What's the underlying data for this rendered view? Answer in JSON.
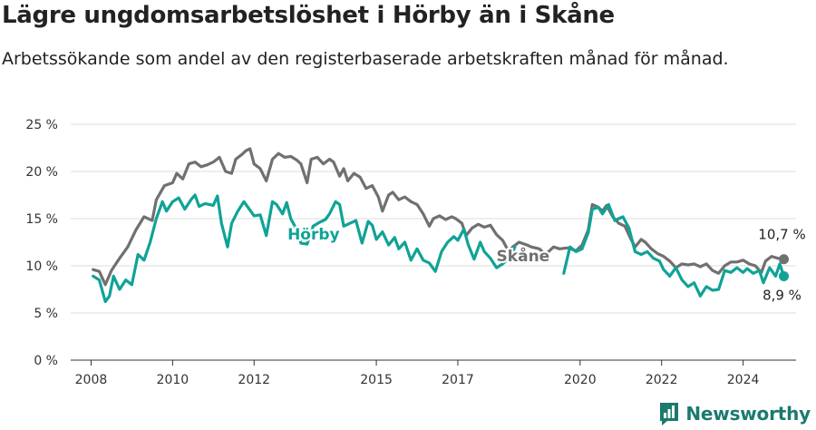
{
  "title": "Lägre ungdomsarbetslöshet i Hörby än i Skåne",
  "subtitle": "Arbetssökande som andel av den registerbaserade arbetskraften månad för månad.",
  "brand": {
    "name": "Newsworthy"
  },
  "colors": {
    "horby": "#0fa396",
    "skane": "#707070",
    "grid": "#dedede",
    "brand": "#1a7a6e"
  },
  "chart_data": {
    "type": "line",
    "y_unit": "%",
    "ylim": [
      0,
      25
    ],
    "y_ticks": [
      0,
      5,
      10,
      15,
      20,
      25
    ],
    "y_tick_labels": [
      "0 %",
      "5 %",
      "10 %",
      "15 %",
      "20 %",
      "25 %"
    ],
    "x_ticks": [
      2008,
      2010,
      2012,
      2015,
      2017,
      2020,
      2022,
      2024
    ],
    "xlim": [
      2007.5,
      2025.3
    ],
    "grid": true,
    "series": [
      {
        "name": "Skåne",
        "key": "skane",
        "end_label": "10,7 %",
        "points": [
          [
            2008.05,
            9.6
          ],
          [
            2008.2,
            9.4
          ],
          [
            2008.35,
            8.0
          ],
          [
            2008.5,
            9.5
          ],
          [
            2008.7,
            10.8
          ],
          [
            2008.9,
            12.0
          ],
          [
            2009.1,
            13.8
          ],
          [
            2009.3,
            15.2
          ],
          [
            2009.5,
            14.8
          ],
          [
            2009.6,
            17.0
          ],
          [
            2009.8,
            18.5
          ],
          [
            2010.0,
            18.8
          ],
          [
            2010.1,
            19.8
          ],
          [
            2010.25,
            19.2
          ],
          [
            2010.4,
            20.8
          ],
          [
            2010.55,
            21.0
          ],
          [
            2010.7,
            20.5
          ],
          [
            2010.85,
            20.7
          ],
          [
            2011.0,
            21.0
          ],
          [
            2011.15,
            21.5
          ],
          [
            2011.3,
            20.0
          ],
          [
            2011.45,
            19.8
          ],
          [
            2011.55,
            21.3
          ],
          [
            2011.7,
            21.8
          ],
          [
            2011.8,
            22.2
          ],
          [
            2011.9,
            22.4
          ],
          [
            2012.0,
            20.8
          ],
          [
            2012.15,
            20.3
          ],
          [
            2012.3,
            19.0
          ],
          [
            2012.45,
            21.3
          ],
          [
            2012.6,
            21.9
          ],
          [
            2012.75,
            21.5
          ],
          [
            2012.9,
            21.6
          ],
          [
            2013.05,
            21.2
          ],
          [
            2013.15,
            20.8
          ],
          [
            2013.3,
            18.8
          ],
          [
            2013.4,
            21.3
          ],
          [
            2013.55,
            21.5
          ],
          [
            2013.7,
            20.8
          ],
          [
            2013.85,
            21.3
          ],
          [
            2013.95,
            21.0
          ],
          [
            2014.1,
            19.5
          ],
          [
            2014.2,
            20.3
          ],
          [
            2014.3,
            19.0
          ],
          [
            2014.45,
            19.8
          ],
          [
            2014.6,
            19.4
          ],
          [
            2014.75,
            18.2
          ],
          [
            2014.9,
            18.5
          ],
          [
            2015.05,
            17.3
          ],
          [
            2015.15,
            15.8
          ],
          [
            2015.3,
            17.5
          ],
          [
            2015.4,
            17.8
          ],
          [
            2015.55,
            17.0
          ],
          [
            2015.7,
            17.3
          ],
          [
            2015.85,
            16.8
          ],
          [
            2016.0,
            16.5
          ],
          [
            2016.15,
            15.5
          ],
          [
            2016.3,
            14.2
          ],
          [
            2016.4,
            15.0
          ],
          [
            2016.55,
            15.3
          ],
          [
            2016.7,
            14.9
          ],
          [
            2016.85,
            15.2
          ],
          [
            2016.95,
            15.0
          ],
          [
            2017.1,
            14.5
          ],
          [
            2017.2,
            13.2
          ],
          [
            2017.35,
            14.0
          ],
          [
            2017.5,
            14.4
          ],
          [
            2017.65,
            14.1
          ],
          [
            2017.8,
            14.3
          ],
          [
            2017.95,
            13.3
          ],
          [
            2018.1,
            12.7
          ],
          [
            2018.25,
            11.5
          ],
          [
            2018.35,
            12.0
          ],
          [
            2018.5,
            12.5
          ],
          [
            2018.7,
            12.2
          ],
          [
            2018.8,
            12.0
          ],
          [
            2019.0,
            11.8
          ],
          [
            2019.15,
            11.2
          ],
          [
            2019.35,
            12.0
          ],
          [
            2019.5,
            11.8
          ],
          [
            2019.7,
            11.9
          ],
          [
            2019.9,
            11.6
          ],
          [
            2020.05,
            12.2
          ],
          [
            2020.2,
            13.8
          ],
          [
            2020.3,
            16.5
          ],
          [
            2020.45,
            16.2
          ],
          [
            2020.55,
            15.8
          ],
          [
            2020.65,
            16.4
          ],
          [
            2020.8,
            15.2
          ],
          [
            2020.95,
            14.5
          ],
          [
            2021.1,
            14.2
          ],
          [
            2021.25,
            12.8
          ],
          [
            2021.35,
            12.0
          ],
          [
            2021.5,
            12.8
          ],
          [
            2021.6,
            12.5
          ],
          [
            2021.75,
            11.8
          ],
          [
            2021.9,
            11.3
          ],
          [
            2022.05,
            11.0
          ],
          [
            2022.2,
            10.5
          ],
          [
            2022.35,
            9.8
          ],
          [
            2022.5,
            10.2
          ],
          [
            2022.65,
            10.1
          ],
          [
            2022.8,
            10.2
          ],
          [
            2022.95,
            9.9
          ],
          [
            2023.1,
            10.2
          ],
          [
            2023.25,
            9.5
          ],
          [
            2023.4,
            9.2
          ],
          [
            2023.55,
            10.0
          ],
          [
            2023.7,
            10.4
          ],
          [
            2023.85,
            10.4
          ],
          [
            2024.0,
            10.6
          ],
          [
            2024.15,
            10.2
          ],
          [
            2024.3,
            10.0
          ],
          [
            2024.45,
            9.3
          ],
          [
            2024.55,
            10.5
          ],
          [
            2024.7,
            11.0
          ],
          [
            2024.85,
            10.8
          ],
          [
            2025.0,
            10.7
          ]
        ]
      },
      {
        "name": "Hörby",
        "key": "horby",
        "end_label": "8,9 %",
        "points": [
          [
            2008.05,
            8.9
          ],
          [
            2008.2,
            8.5
          ],
          [
            2008.35,
            6.2
          ],
          [
            2008.45,
            6.8
          ],
          [
            2008.55,
            8.9
          ],
          [
            2008.7,
            7.5
          ],
          [
            2008.85,
            8.5
          ],
          [
            2009.0,
            8.0
          ],
          [
            2009.15,
            11.2
          ],
          [
            2009.3,
            10.6
          ],
          [
            2009.45,
            12.5
          ],
          [
            2009.6,
            15.0
          ],
          [
            2009.75,
            16.8
          ],
          [
            2009.85,
            15.8
          ],
          [
            2010.0,
            16.8
          ],
          [
            2010.15,
            17.2
          ],
          [
            2010.3,
            16.0
          ],
          [
            2010.45,
            17.0
          ],
          [
            2010.55,
            17.5
          ],
          [
            2010.65,
            16.3
          ],
          [
            2010.8,
            16.6
          ],
          [
            2011.0,
            16.4
          ],
          [
            2011.1,
            17.4
          ],
          [
            2011.2,
            14.5
          ],
          [
            2011.35,
            12.0
          ],
          [
            2011.45,
            14.5
          ],
          [
            2011.6,
            15.8
          ],
          [
            2011.75,
            16.8
          ],
          [
            2011.85,
            16.2
          ],
          [
            2012.0,
            15.3
          ],
          [
            2012.15,
            15.4
          ],
          [
            2012.3,
            13.2
          ],
          [
            2012.45,
            16.8
          ],
          [
            2012.55,
            16.5
          ],
          [
            2012.7,
            15.5
          ],
          [
            2012.8,
            16.7
          ],
          [
            2012.9,
            15.0
          ],
          [
            2013.0,
            14.2
          ],
          [
            2013.15,
            12.4
          ],
          [
            2013.3,
            12.3
          ],
          [
            2013.45,
            14.2
          ],
          [
            2013.6,
            14.6
          ],
          [
            2013.75,
            14.9
          ],
          [
            2013.85,
            15.5
          ],
          [
            2014.0,
            16.8
          ],
          [
            2014.1,
            16.5
          ],
          [
            2014.2,
            14.2
          ],
          [
            2014.35,
            14.5
          ],
          [
            2014.5,
            14.8
          ],
          [
            2014.65,
            12.4
          ],
          [
            2014.8,
            14.7
          ],
          [
            2014.9,
            14.3
          ],
          [
            2015.0,
            12.8
          ],
          [
            2015.15,
            13.6
          ],
          [
            2015.3,
            12.2
          ],
          [
            2015.45,
            13.0
          ],
          [
            2015.55,
            11.8
          ],
          [
            2015.7,
            12.5
          ],
          [
            2015.85,
            10.6
          ],
          [
            2016.0,
            11.8
          ],
          [
            2016.15,
            10.6
          ],
          [
            2016.3,
            10.3
          ],
          [
            2016.45,
            9.4
          ],
          [
            2016.6,
            11.5
          ],
          [
            2016.75,
            12.5
          ],
          [
            2016.9,
            13.1
          ],
          [
            2017.0,
            12.7
          ],
          [
            2017.15,
            13.9
          ],
          [
            2017.25,
            12.3
          ],
          [
            2017.4,
            10.7
          ],
          [
            2017.55,
            12.5
          ],
          [
            2017.65,
            11.5
          ],
          [
            2017.8,
            10.8
          ],
          [
            2017.95,
            9.8
          ],
          [
            2018.1,
            10.2
          ],
          [
            2018.3,
            11.0
          ],
          [
            2018.4,
            12.0
          ],
          [
            2019.6,
            9.2
          ],
          [
            2019.75,
            12.0
          ],
          [
            2019.9,
            11.5
          ],
          [
            2020.05,
            11.8
          ],
          [
            2020.2,
            13.5
          ],
          [
            2020.3,
            16.0
          ],
          [
            2020.45,
            16.2
          ],
          [
            2020.55,
            15.5
          ],
          [
            2020.7,
            16.5
          ],
          [
            2020.85,
            14.8
          ],
          [
            2020.95,
            15.0
          ],
          [
            2021.05,
            15.2
          ],
          [
            2021.2,
            14.0
          ],
          [
            2021.35,
            11.5
          ],
          [
            2021.5,
            11.2
          ],
          [
            2021.65,
            11.5
          ],
          [
            2021.8,
            10.8
          ],
          [
            2021.95,
            10.5
          ],
          [
            2022.05,
            9.6
          ],
          [
            2022.2,
            8.9
          ],
          [
            2022.35,
            9.8
          ],
          [
            2022.5,
            8.5
          ],
          [
            2022.65,
            7.8
          ],
          [
            2022.8,
            8.2
          ],
          [
            2022.95,
            6.8
          ],
          [
            2023.1,
            7.8
          ],
          [
            2023.25,
            7.4
          ],
          [
            2023.4,
            7.5
          ],
          [
            2023.55,
            9.5
          ],
          [
            2023.7,
            9.3
          ],
          [
            2023.85,
            9.8
          ],
          [
            2024.0,
            9.3
          ],
          [
            2024.1,
            9.7
          ],
          [
            2024.25,
            9.2
          ],
          [
            2024.4,
            9.5
          ],
          [
            2024.5,
            8.2
          ],
          [
            2024.65,
            9.8
          ],
          [
            2024.8,
            8.9
          ],
          [
            2024.9,
            10.2
          ],
          [
            2025.0,
            8.9
          ]
        ]
      }
    ]
  }
}
